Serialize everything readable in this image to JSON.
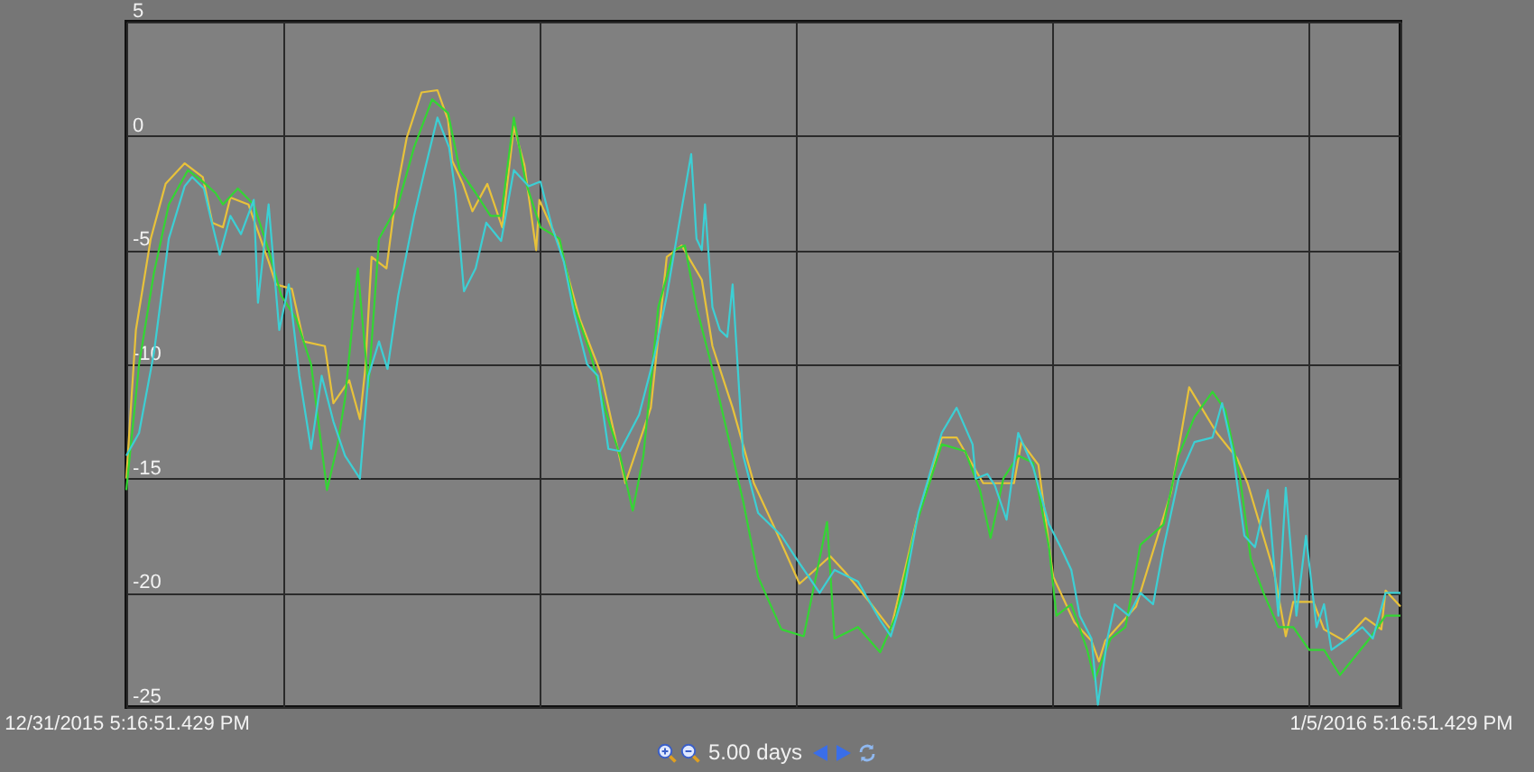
{
  "chart_data": {
    "type": "line",
    "xlim": [
      "2015-12-31T17:16",
      "2016-01-05T17:16"
    ],
    "xticks": [
      {
        "value": "2015-12-31T17:16",
        "label": "12/31/2015 5:16:51.429 PM"
      },
      {
        "value": "2016-01-01T08:04",
        "label": null
      },
      {
        "value": "2016-01-02T08:10",
        "label": null
      },
      {
        "value": "2016-01-03T08:22",
        "label": null
      },
      {
        "value": "2016-01-04T08:28",
        "label": null
      },
      {
        "value": "2016-01-05T08:40",
        "label": null
      },
      {
        "value": "2016-01-05T17:16",
        "label": "1/5/2016 5:16:51.429 PM"
      }
    ],
    "ylim": [
      -25,
      5
    ],
    "yticks": [
      5,
      0,
      -5,
      -10,
      -15,
      -20,
      -25
    ],
    "grid": true,
    "annotations": [
      "5.00 days"
    ],
    "series": [
      {
        "color": "#e8c23a",
        "x": [
          "2015-12-31T17:16",
          "2015-12-31T18:10",
          "2015-12-31T19:34",
          "2015-12-31T20:58",
          "2015-12-31T22:46",
          "2016-01-01T00:28",
          "2016-01-01T01:22",
          "2016-01-01T02:22",
          "2016-01-01T03:04",
          "2016-01-01T04:46",
          "2016-01-01T06:40",
          "2016-01-01T07:22",
          "2016-01-01T08:52",
          "2016-01-01T09:58",
          "2016-01-01T11:58",
          "2016-01-01T12:46",
          "2016-01-01T14:16",
          "2016-01-01T15:16",
          "2016-01-01T15:46",
          "2016-01-01T16:22",
          "2016-01-01T17:46",
          "2016-01-01T18:40",
          "2016-01-01T19:40",
          "2016-01-01T21:04",
          "2016-01-01T22:34",
          "2016-01-01T23:34",
          "2016-01-01T23:58",
          "2016-01-02T00:58",
          "2016-01-02T01:52",
          "2016-01-02T03:16",
          "2016-01-02T04:40",
          "2016-01-02T05:46",
          "2016-01-02T06:46",
          "2016-01-02T07:52",
          "2016-01-02T08:10",
          "2016-01-02T10:04",
          "2016-01-02T11:58",
          "2016-01-02T13:58",
          "2016-01-02T16:16",
          "2016-01-02T18:40",
          "2016-01-02T20:10",
          "2016-01-02T21:34",
          "2016-01-02T23:28",
          "2016-01-03T00:28",
          "2016-01-03T02:22",
          "2016-01-03T04:22",
          "2016-01-03T06:16",
          "2016-01-03T08:40",
          "2016-01-03T11:34",
          "2016-01-03T12:58",
          "2016-01-03T15:16",
          "2016-01-03T17:16",
          "2016-01-03T19:40",
          "2016-01-03T22:04",
          "2016-01-03T23:28",
          "2016-01-04T01:58",
          "2016-01-04T04:52",
          "2016-01-04T05:34",
          "2016-01-04T07:10",
          "2016-01-04T08:34",
          "2016-01-04T10:34",
          "2016-01-04T12:10",
          "2016-01-04T12:52",
          "2016-01-04T13:28",
          "2016-01-04T16:22",
          "2016-01-04T19:40",
          "2016-01-04T21:22",
          "2016-01-04T23:58",
          "2016-01-05T01:52",
          "2016-01-05T02:52",
          "2016-01-05T05:22",
          "2016-01-05T06:28",
          "2016-01-05T07:10",
          "2016-01-05T09:04",
          "2016-01-05T10:04",
          "2016-01-05T11:58",
          "2016-01-05T13:58",
          "2016-01-05T15:28",
          "2016-01-05T15:52",
          "2016-01-05T17:16"
        ],
        "values": [
          -15,
          -8.5,
          -4.5,
          -2.1,
          -1.2,
          -1.8,
          -3.8,
          -4,
          -2.7,
          -3.0,
          -5.5,
          -6.5,
          -6.7,
          -9,
          -9.2,
          -11.7,
          -10.7,
          -12.4,
          -10.2,
          -5.3,
          -5.8,
          -2.6,
          -0.1,
          1.9,
          2.0,
          0.7,
          -1.1,
          -2.1,
          -3.3,
          -2.1,
          -4,
          0.4,
          -1.3,
          -5,
          -2.8,
          -4.8,
          -8,
          -10.4,
          -15.2,
          -11.9,
          -5.3,
          -4.8,
          -6.3,
          -9.2,
          -11.9,
          -15.2,
          -17.1,
          -19.6,
          -18.4,
          -19.1,
          -20.4,
          -21.6,
          -16.9,
          -13.2,
          -13.2,
          -15.2,
          -15.2,
          -13.4,
          -14.4,
          -19.3,
          -21.3,
          -22.1,
          -23,
          -22.1,
          -20.6,
          -15.6,
          -11.0,
          -13,
          -14.1,
          -15.2,
          -19.1,
          -21.9,
          -20.4,
          -20.4,
          -21.6,
          -22.1,
          -21.1,
          -21.6,
          -19.9,
          -20.6
        ]
      },
      {
        "color": "#33d633",
        "x": [
          "2015-12-31T17:16",
          "2015-12-31T18:28",
          "2015-12-31T19:52",
          "2015-12-31T21:16",
          "2015-12-31T23:04",
          "2016-01-01T00:28",
          "2016-01-01T01:40",
          "2016-01-01T02:22",
          "2016-01-01T03:46",
          "2016-01-01T05:16",
          "2016-01-01T06:40",
          "2016-01-01T07:52",
          "2016-01-01T09:16",
          "2016-01-01T10:40",
          "2016-01-01T12:10",
          "2016-01-01T13:10",
          "2016-01-01T13:52",
          "2016-01-01T15:04",
          "2016-01-01T16:04",
          "2016-01-01T17:04",
          "2016-01-01T18:52",
          "2016-01-01T20:22",
          "2016-01-01T22:04",
          "2016-01-01T23:34",
          "2016-01-02T00:40",
          "2016-01-02T02:10",
          "2016-01-02T03:34",
          "2016-01-02T04:34",
          "2016-01-02T05:46",
          "2016-01-02T06:52",
          "2016-01-02T08:16",
          "2016-01-02T10:04",
          "2016-01-02T11:28",
          "2016-01-02T12:58",
          "2016-01-02T14:22",
          "2016-01-02T15:46",
          "2016-01-02T16:58",
          "2016-01-02T17:58",
          "2016-01-02T19:22",
          "2016-01-02T20:52",
          "2016-01-02T21:52",
          "2016-01-02T22:58",
          "2016-01-03T00:28",
          "2016-01-03T01:52",
          "2016-01-03T03:22",
          "2016-01-03T04:46",
          "2016-01-03T06:58",
          "2016-01-03T09:04",
          "2016-01-03T11:16",
          "2016-01-03T11:58",
          "2016-01-03T14:10",
          "2016-01-03T16:16",
          "2016-01-03T17:46",
          "2016-01-03T19:40",
          "2016-01-03T22:04",
          "2016-01-04T00:16",
          "2016-01-04T01:40",
          "2016-01-04T02:40",
          "2016-01-04T03:52",
          "2016-01-04T05:16",
          "2016-01-04T06:40",
          "2016-01-04T08:10",
          "2016-01-04T08:52",
          "2016-01-04T10:16",
          "2016-01-04T11:46",
          "2016-01-04T12:28",
          "2016-01-04T13:58",
          "2016-01-04T15:22",
          "2016-01-04T16:46",
          "2016-01-04T18:58",
          "2016-01-04T20:22",
          "2016-01-04T21:52",
          "2016-01-04T23:34",
          "2016-01-05T00:46",
          "2016-01-05T02:10",
          "2016-01-05T03:10",
          "2016-01-05T04:22",
          "2016-01-05T05:46",
          "2016-01-05T07:10",
          "2016-01-05T08:40",
          "2016-01-05T10:04",
          "2016-01-05T11:34",
          "2016-01-05T12:58",
          "2016-01-05T14:22",
          "2016-01-05T15:52",
          "2016-01-05T17:16"
        ],
        "values": [
          -15.5,
          -10,
          -6,
          -3.0,
          -1.5,
          -2,
          -2.5,
          -3,
          -2.3,
          -3.0,
          -5.0,
          -7,
          -8,
          -10,
          -15.5,
          -13.5,
          -11.5,
          -5.8,
          -11,
          -4.5,
          -3,
          -0.5,
          1.6,
          1.0,
          -1.5,
          -2.5,
          -3.5,
          -3.5,
          0.8,
          -2,
          -4,
          -4.5,
          -7.5,
          -9.5,
          -12,
          -14,
          -16.4,
          -14,
          -7.5,
          -5,
          -4.8,
          -7.5,
          -10.2,
          -13,
          -16,
          -19.3,
          -21.6,
          -21.9,
          -16.9,
          -22,
          -21.5,
          -22.6,
          -21,
          -17,
          -13.5,
          -13.8,
          -15.5,
          -17.6,
          -15,
          -14,
          -14.3,
          -18,
          -21,
          -20.5,
          -22.5,
          -23.8,
          -22,
          -21.5,
          -17.9,
          -17,
          -14,
          -12.3,
          -11.2,
          -12,
          -15,
          -18.5,
          -20,
          -21.5,
          -21.5,
          -22.5,
          -22.5,
          -23.6,
          -22.8,
          -22,
          -21,
          -21
        ]
      },
      {
        "color": "#3ccfd4",
        "x": [
          "2015-12-31T17:16",
          "2015-12-31T18:28",
          "2015-12-31T19:52",
          "2015-12-31T20:34",
          "2015-12-31T21:16",
          "2015-12-31T22:46",
          "2015-12-31T23:28",
          "2016-01-01T00:34",
          "2016-01-01T01:10",
          "2016-01-01T02:04",
          "2016-01-01T03:04",
          "2016-01-01T04:04",
          "2016-01-01T05:16",
          "2016-01-01T05:40",
          "2016-01-01T06:40",
          "2016-01-01T07:40",
          "2016-01-01T08:34",
          "2016-01-01T09:34",
          "2016-01-01T10:40",
          "2016-01-01T11:40",
          "2016-01-01T12:46",
          "2016-01-01T13:52",
          "2016-01-01T15:16",
          "2016-01-01T16:04",
          "2016-01-01T17:04",
          "2016-01-01T17:52",
          "2016-01-01T18:52",
          "2016-01-01T20:22",
          "2016-01-01T21:22",
          "2016-01-01T22:34",
          "2016-01-01T23:40",
          "2016-01-02T00:16",
          "2016-01-02T01:04",
          "2016-01-02T02:10",
          "2016-01-02T03:10",
          "2016-01-02T04:34",
          "2016-01-02T05:46",
          "2016-01-02T07:10",
          "2016-01-02T08:16",
          "2016-01-02T09:22",
          "2016-01-02T10:28",
          "2016-01-02T11:28",
          "2016-01-02T12:40",
          "2016-01-02T13:40",
          "2016-01-02T14:40",
          "2016-01-02T15:46",
          "2016-01-02T17:34",
          "2016-01-02T18:58",
          "2016-01-02T20:10",
          "2016-01-02T21:34",
          "2016-01-02T22:28",
          "2016-01-02T22:58",
          "2016-01-02T23:28",
          "2016-01-02T23:46",
          "2016-01-03T00:28",
          "2016-01-03T01:10",
          "2016-01-03T01:52",
          "2016-01-03T02:22",
          "2016-01-03T03:22",
          "2016-01-03T04:46",
          "2016-01-03T06:58",
          "2016-01-03T08:22",
          "2016-01-03T10:34",
          "2016-01-03T11:58",
          "2016-01-03T14:10",
          "2016-01-03T16:16",
          "2016-01-03T17:16",
          "2016-01-03T18:28",
          "2016-01-03T19:52",
          "2016-01-03T22:04",
          "2016-01-03T23:28",
          "2016-01-04T00:58",
          "2016-01-04T01:16",
          "2016-01-04T02:22",
          "2016-01-04T03:04",
          "2016-01-04T04:10",
          "2016-01-04T05:16",
          "2016-01-04T06:40",
          "2016-01-04T08:10",
          "2016-01-04T09:16",
          "2016-01-04T10:16",
          "2016-01-04T11:04",
          "2016-01-04T12:10",
          "2016-01-04T12:46",
          "2016-01-04T13:40",
          "2016-01-04T14:22",
          "2016-01-04T15:40",
          "2016-01-04T16:46",
          "2016-01-04T17:58",
          "2016-01-04T18:58",
          "2016-01-04T20:22",
          "2016-01-04T21:52",
          "2016-01-04T23:34",
          "2016-01-05T00:28",
          "2016-01-05T01:28",
          "2016-01-05T02:34",
          "2016-01-05T03:34",
          "2016-01-05T04:46",
          "2016-01-05T05:46",
          "2016-01-05T06:28",
          "2016-01-05T07:28",
          "2016-01-05T08:22",
          "2016-01-05T09:22",
          "2016-01-05T10:04",
          "2016-01-05T10:46",
          "2016-01-05T12:16",
          "2016-01-05T13:40",
          "2016-01-05T14:40",
          "2016-01-05T15:52",
          "2016-01-05T17:16"
        ],
        "values": [
          -14,
          -13,
          -9.5,
          -7.0,
          -4.5,
          -2.2,
          -1.8,
          -2.3,
          -3.5,
          -5.2,
          -3.5,
          -4.3,
          -2.8,
          -7.3,
          -3.0,
          -8.5,
          -6.5,
          -10.5,
          -13.7,
          -10.5,
          -12.5,
          -14,
          -15,
          -10.5,
          -9,
          -10.2,
          -7,
          -3.5,
          -1.5,
          0.8,
          -0.5,
          -2.5,
          -6.8,
          -5.8,
          -3.8,
          -4.6,
          -1.5,
          -2.2,
          -2.0,
          -4,
          -5.5,
          -7.8,
          -10,
          -10.5,
          -13.7,
          -13.8,
          -12.2,
          -9.7,
          -7,
          -3.2,
          -0.8,
          -4.5,
          -5,
          -3.0,
          -7.5,
          -8.5,
          -8.8,
          -6.5,
          -14,
          -16.5,
          -17.5,
          -18.5,
          -20,
          -19,
          -19.5,
          -21.2,
          -21.9,
          -20,
          -16.5,
          -13,
          -11.9,
          -13.5,
          -15,
          -14.8,
          -15.3,
          -16.8,
          -13,
          -14.5,
          -17,
          -18,
          -19,
          -21,
          -22,
          -24.9,
          -22,
          -20.5,
          -21,
          -20,
          -20.5,
          -18,
          -15,
          -13.4,
          -13.2,
          -11.7,
          -13.8,
          -17.5,
          -18,
          -15.5,
          -21,
          -15.4,
          -21,
          -17.5,
          -21.5,
          -20.5,
          -22.5,
          -22,
          -21.5,
          -22,
          -20,
          -20
        ]
      }
    ]
  }
}
